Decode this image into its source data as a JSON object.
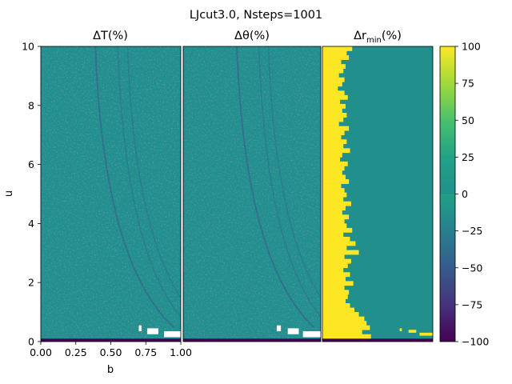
{
  "figure": {
    "suptitle": "LJcut3.0, Nsteps=1001"
  },
  "chart_data": [
    {
      "type": "heatmap",
      "title_symbol": "ΔT",
      "title_suffix": "(%)",
      "xlabel": "b",
      "ylabel": "u",
      "xlim": [
        0,
        1
      ],
      "ylim": [
        0,
        10
      ],
      "xticks": [
        "0.00",
        "0.25",
        "0.50",
        "0.75",
        "1.00"
      ],
      "yticks": [
        "0",
        "2",
        "4",
        "6",
        "8",
        "10"
      ],
      "baseline_value": 0,
      "low_band": {
        "u_max": 0.1,
        "value": -100
      },
      "missing_cells": [
        {
          "b0": 0.7,
          "b1": 0.72,
          "u0": 0.35,
          "u1": 0.55
        },
        {
          "b0": 0.76,
          "b1": 0.84,
          "u0": 0.25,
          "u1": 0.45
        },
        {
          "b0": 0.88,
          "b1": 1.0,
          "u0": 0.15,
          "u1": 0.35
        }
      ]
    },
    {
      "type": "heatmap",
      "title_symbol": "Δθ",
      "title_suffix": "(%)",
      "xlim": [
        0,
        1
      ],
      "ylim": [
        0,
        10
      ],
      "baseline_value": 0,
      "low_band": {
        "u_max": 0.1,
        "value": -100
      },
      "missing_cells": [
        {
          "b0": 0.68,
          "b1": 0.71,
          "u0": 0.35,
          "u1": 0.55
        },
        {
          "b0": 0.76,
          "b1": 0.84,
          "u0": 0.25,
          "u1": 0.45
        },
        {
          "b0": 0.87,
          "b1": 1.0,
          "u0": 0.15,
          "u1": 0.35
        }
      ]
    },
    {
      "type": "heatmap",
      "title_symbol": "Δr",
      "title_subscript": "min",
      "title_suffix": "(%)",
      "xlim": [
        0,
        1
      ],
      "ylim": [
        0,
        10
      ],
      "baseline_value": 0,
      "high_value": 100,
      "low_band": {
        "u_max": 0.1,
        "value": -100
      },
      "high_region_edge": {
        "u": [
          10.0,
          9.85,
          9.7,
          9.55,
          9.4,
          9.25,
          9.1,
          8.95,
          8.8,
          8.65,
          8.5,
          8.35,
          8.2,
          8.05,
          7.9,
          7.75,
          7.6,
          7.45,
          7.3,
          7.15,
          7.0,
          6.85,
          6.7,
          6.55,
          6.4,
          6.25,
          6.1,
          5.95,
          5.8,
          5.65,
          5.5,
          5.35,
          5.2,
          5.05,
          4.9,
          4.75,
          4.6,
          4.45,
          4.3,
          4.15,
          4.0,
          3.85,
          3.7,
          3.55,
          3.4,
          3.25,
          3.1,
          2.95,
          2.8,
          2.65,
          2.5,
          2.35,
          2.2,
          2.05,
          1.9,
          1.75,
          1.6,
          1.45,
          1.3,
          1.15,
          1.0,
          0.85,
          0.7,
          0.55,
          0.4,
          0.25,
          0.1
        ],
        "b_max": [
          0.27,
          0.22,
          0.24,
          0.17,
          0.21,
          0.19,
          0.15,
          0.2,
          0.18,
          0.14,
          0.2,
          0.23,
          0.16,
          0.21,
          0.18,
          0.22,
          0.19,
          0.15,
          0.24,
          0.2,
          0.17,
          0.22,
          0.19,
          0.25,
          0.18,
          0.16,
          0.23,
          0.2,
          0.18,
          0.21,
          0.24,
          0.17,
          0.2,
          0.22,
          0.19,
          0.26,
          0.21,
          0.18,
          0.24,
          0.2,
          0.22,
          0.27,
          0.19,
          0.25,
          0.3,
          0.22,
          0.33,
          0.2,
          0.26,
          0.23,
          0.19,
          0.25,
          0.21,
          0.28,
          0.2,
          0.24,
          0.23,
          0.21,
          0.25,
          0.29,
          0.33,
          0.38,
          0.4,
          0.43,
          0.36,
          0.44,
          0.45
        ]
      },
      "tail_cells": [
        {
          "b0": 0.7,
          "b1": 0.72,
          "u0": 0.35,
          "u1": 0.45
        },
        {
          "b0": 0.78,
          "b1": 0.85,
          "u0": 0.3,
          "u1": 0.4
        },
        {
          "b0": 0.88,
          "b1": 1.0,
          "u0": 0.2,
          "u1": 0.3
        }
      ]
    }
  ],
  "colorbar": {
    "colormap": "viridis",
    "vmin": -100,
    "vmax": 100,
    "ticks": [
      "100",
      "75",
      "50",
      "25",
      "0",
      "−25",
      "−50",
      "−75",
      "−100"
    ],
    "tick_values": [
      100,
      75,
      50,
      25,
      0,
      -25,
      -50,
      -75,
      -100
    ]
  }
}
